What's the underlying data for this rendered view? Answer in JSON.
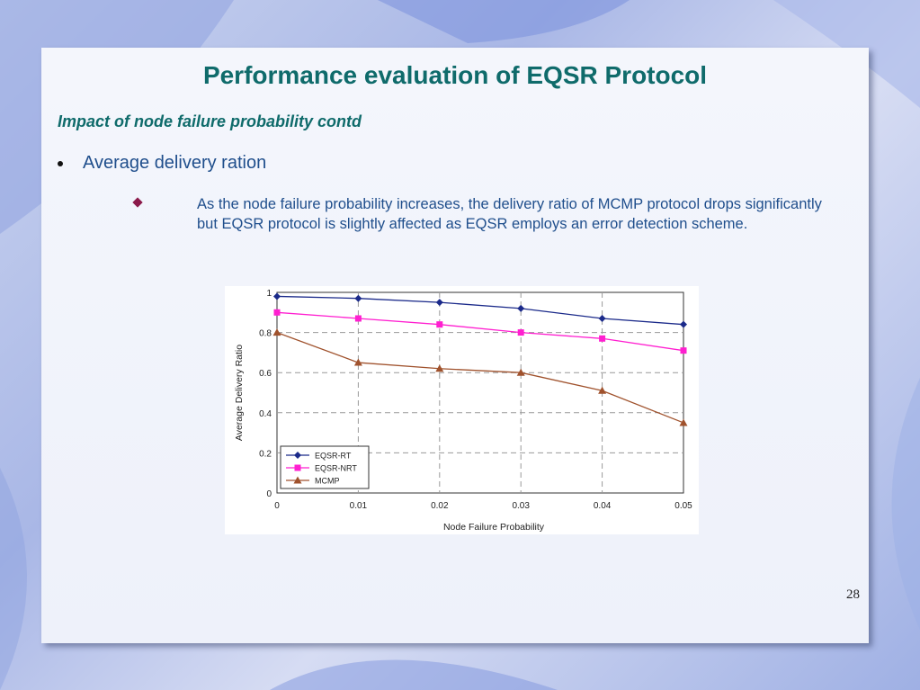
{
  "slide": {
    "title": "Performance evaluation of EQSR Protocol",
    "subtitle": "Impact of node failure probability contd",
    "bullet1": "Average delivery ration",
    "bullet2": "As the node failure probability increases, the delivery ratio of MCMP protocol drops significantly but EQSR protocol is slightly affected as EQSR employs an error detection scheme.",
    "page_number": "28"
  },
  "chart_data": {
    "type": "line",
    "xlabel": "Node Failure Probability",
    "ylabel": "Average Delivery Ratio",
    "x": [
      0,
      0.01,
      0.02,
      0.03,
      0.04,
      0.05
    ],
    "x_tick_labels": [
      "0",
      "0.01",
      "0.02",
      "0.03",
      "0.04",
      "0.05"
    ],
    "y_tick_labels": [
      "0",
      "0.2",
      "0.4",
      "0.6",
      "0.8",
      "1"
    ],
    "xlim": [
      0,
      0.05
    ],
    "ylim": [
      0,
      1
    ],
    "grid": true,
    "legend_position": "bottom-left",
    "series": [
      {
        "name": "EQSR-RT",
        "color": "#1b2a8a",
        "marker": "diamond",
        "values": [
          0.98,
          0.97,
          0.95,
          0.92,
          0.87,
          0.84
        ]
      },
      {
        "name": "EQSR-NRT",
        "color": "#ff1fd0",
        "marker": "square",
        "values": [
          0.9,
          0.87,
          0.84,
          0.8,
          0.77,
          0.71
        ]
      },
      {
        "name": "MCMP",
        "color": "#a0522d",
        "marker": "triangle",
        "values": [
          0.8,
          0.65,
          0.62,
          0.6,
          0.51,
          0.35
        ]
      }
    ]
  }
}
